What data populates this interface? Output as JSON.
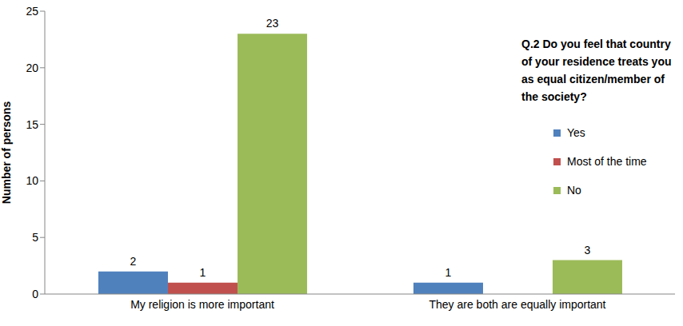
{
  "chart_data": {
    "type": "bar",
    "title": "Q.2 Do you feel that country of your residence treats you as equal citizen/member of the society?",
    "y_label": "Number of persons",
    "categories": [
      "My religion is more important",
      "They are both are equally important"
    ],
    "series": [
      {
        "name": "Yes",
        "color": "#4f81bd",
        "values": [
          2,
          1
        ]
      },
      {
        "name": "Most of the time",
        "color": "#c0504d",
        "values": [
          1,
          0
        ]
      },
      {
        "name": "No",
        "color": "#9bbb59",
        "values": [
          23,
          3
        ]
      }
    ],
    "ylim": [
      0,
      25
    ],
    "yticks": [
      0,
      5,
      10,
      15,
      20,
      25
    ],
    "grid": false,
    "data_labels": true,
    "legend": "right"
  }
}
